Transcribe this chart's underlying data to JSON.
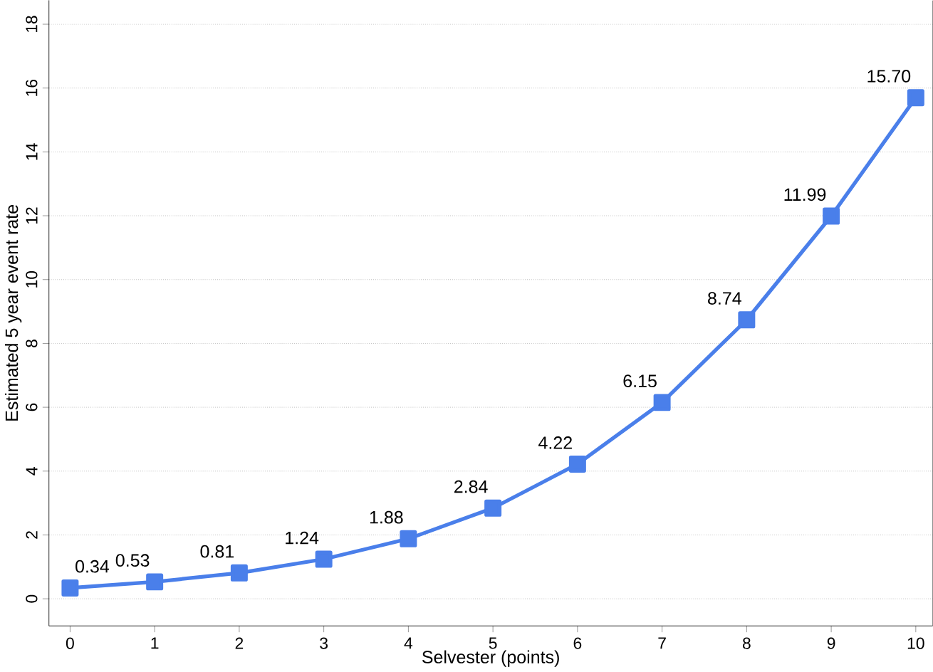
{
  "chart_data": {
    "type": "line",
    "xlabel": "Selvester (points)",
    "ylabel": "Estimated 5 year event rate",
    "x": [
      0,
      1,
      2,
      3,
      4,
      5,
      6,
      7,
      8,
      9,
      10
    ],
    "series": [
      {
        "color": "#4a7fea",
        "values": [
          0.34,
          0.53,
          0.81,
          1.24,
          1.88,
          2.84,
          4.22,
          6.15,
          8.74,
          11.99,
          15.7
        ],
        "value_labels": [
          "0.34",
          "0.53",
          "0.81",
          "1.24",
          "1.88",
          "2.84",
          "4.22",
          "6.15",
          "8.74",
          "11.99",
          "15.70"
        ]
      }
    ],
    "xlim": [
      -0.25,
      10.2
    ],
    "ylim": [
      -0.85,
      18.75
    ],
    "xticks": [
      0,
      1,
      2,
      3,
      4,
      5,
      6,
      7,
      8,
      9,
      10
    ],
    "yticks": [
      0,
      2,
      4,
      6,
      8,
      10,
      12,
      14,
      16,
      18
    ],
    "grid": "y",
    "marker": "square",
    "line_style": "solid"
  }
}
